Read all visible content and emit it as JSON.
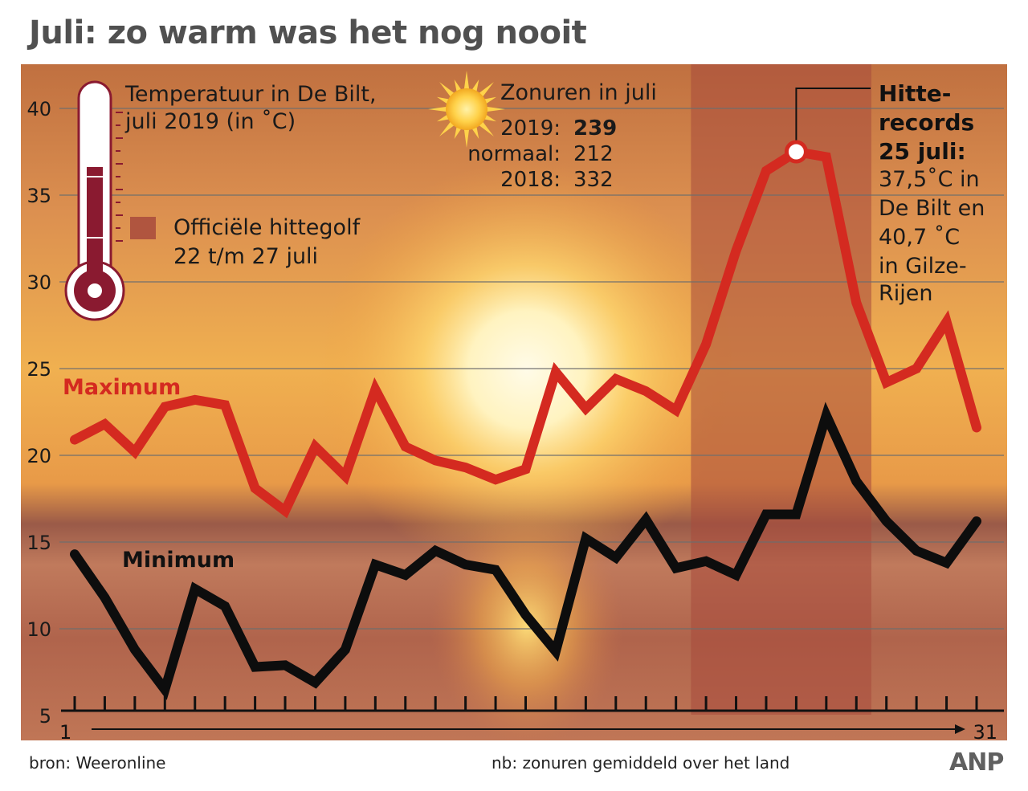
{
  "title": "Juli: zo warm was het nog nooit",
  "source": "bron: Weeronline",
  "note": "nb: zonuren gemiddeld over het land",
  "logo": "ANP",
  "thermo_legend": {
    "line1": "Temperatuur in De Bilt,",
    "line2": "juli 2019 (in ˚C)"
  },
  "heatwave_legend": {
    "line1": "Officiële hittegolf",
    "line2": "22 t/m 27 juli"
  },
  "sun_info": {
    "title": "Zonuren in juli",
    "rows": [
      {
        "label": "2019:",
        "value": "239"
      },
      {
        "label": "normaal:",
        "value": "212"
      },
      {
        "label": "2018:",
        "value": "332"
      }
    ]
  },
  "record_note": {
    "bold_lines": [
      "Hitte-",
      "records",
      "25 juli:"
    ],
    "lines": [
      "37,5˚C in",
      "De Bilt en",
      "40,7 ˚C",
      "in Gilze-",
      "Rijen"
    ]
  },
  "colors": {
    "max_line": "#d42a20",
    "min_line": "#0d0d0d",
    "heatwave_band": "#a84a3c",
    "max_label": "#d42a20"
  },
  "chart_data": {
    "type": "line",
    "x": [
      1,
      2,
      3,
      4,
      5,
      6,
      7,
      8,
      9,
      10,
      11,
      12,
      13,
      14,
      15,
      16,
      17,
      18,
      19,
      20,
      21,
      22,
      23,
      24,
      25,
      26,
      27,
      28,
      29,
      30,
      31
    ],
    "x_tick_labels": [
      "1",
      "31"
    ],
    "y_ticks": [
      5,
      10,
      15,
      20,
      25,
      30,
      35,
      40
    ],
    "ylim": [
      5,
      42
    ],
    "xlim": [
      1,
      31
    ],
    "grid": true,
    "highlight_band": {
      "from": 22,
      "to": 27
    },
    "record_marker": {
      "x": 25,
      "y": 37.5
    },
    "series": [
      {
        "name": "Maximum",
        "values": [
          20.9,
          21.8,
          20.2,
          22.8,
          23.2,
          22.9,
          18.1,
          16.8,
          20.5,
          18.8,
          23.8,
          20.5,
          19.7,
          19.3,
          18.6,
          19.2,
          24.8,
          22.7,
          24.4,
          23.7,
          22.6,
          26.4,
          31.8,
          36.4,
          37.5,
          37.2,
          28.8,
          24.2,
          25.0,
          27.7,
          21.6
        ]
      },
      {
        "name": "Minimum",
        "values": [
          14.3,
          11.8,
          8.8,
          6.5,
          12.3,
          11.3,
          7.8,
          7.9,
          6.9,
          8.8,
          13.7,
          13.1,
          14.5,
          13.7,
          13.4,
          10.8,
          8.7,
          15.2,
          14.1,
          16.3,
          13.5,
          13.9,
          13.1,
          16.6,
          16.6,
          22.3,
          18.5,
          16.2,
          14.5,
          13.8,
          16.2
        ]
      }
    ]
  }
}
